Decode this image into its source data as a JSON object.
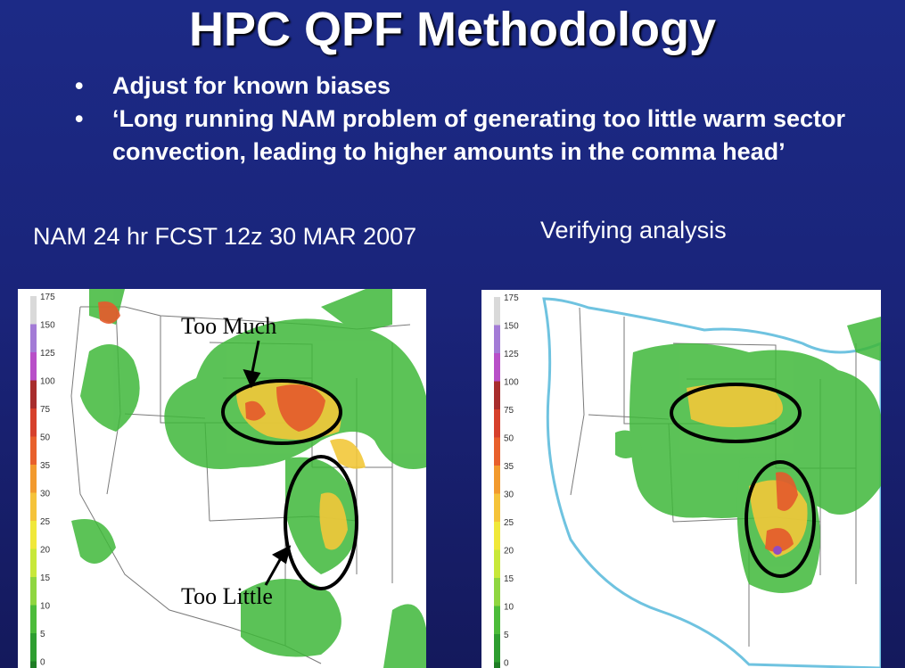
{
  "title": "HPC QPF Methodology",
  "bullets": [
    {
      "marker": "•",
      "text": "Adjust for known biases"
    },
    {
      "marker": "•",
      "text": "‘Long running NAM problem of generating too little warm sector convection, leading to higher amounts in the comma head’"
    }
  ],
  "left_caption": "NAM 24 hr FCST 12z 30 MAR 2007",
  "right_caption": "Verifying analysis",
  "left_map": {
    "annotations": {
      "too_much": "Too Much",
      "too_little": "Too Little"
    }
  },
  "legend_scale": [
    "175",
    "150",
    "125",
    "100",
    "75",
    "50",
    "35",
    "30",
    "25",
    "20",
    "15",
    "10",
    "5",
    "0"
  ],
  "legend_colors": [
    "#d9d9d9",
    "#a37bd6",
    "#b84fc8",
    "#a82d2d",
    "#d6402c",
    "#e8602c",
    "#f29a2e",
    "#f5c33a",
    "#f0e83a",
    "#c8e83a",
    "#8fd640",
    "#4cbc3a",
    "#2e9e30",
    "#1f7d25"
  ],
  "colors": {
    "background": "#1c2a86",
    "ellipse": "#000000",
    "map_border": "#7a7a7a"
  }
}
